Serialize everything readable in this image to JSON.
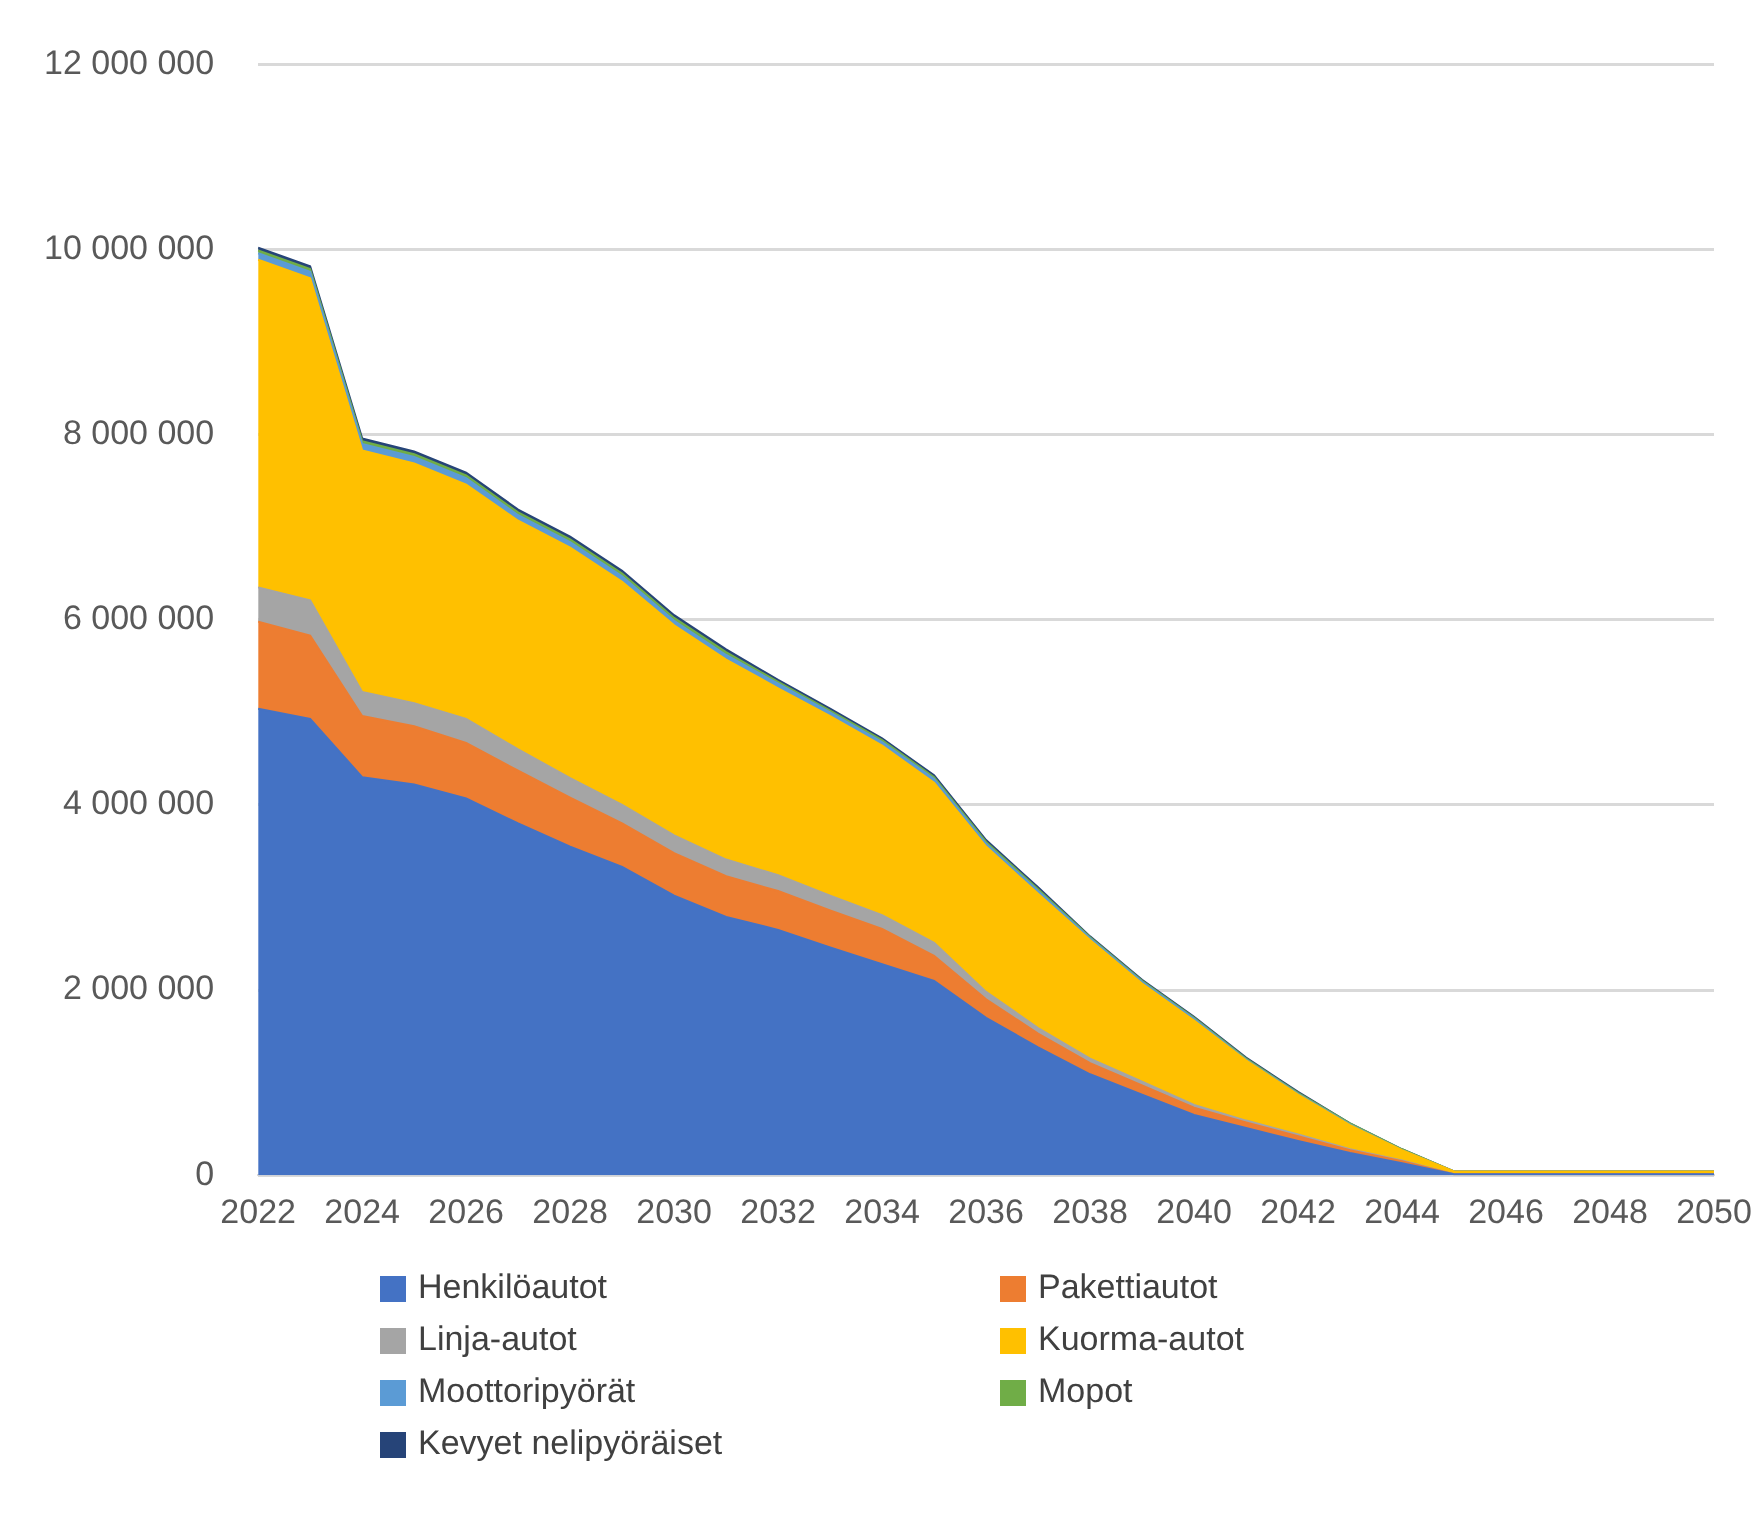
{
  "chart_data": {
    "type": "area",
    "stacked": true,
    "categories": [
      "2022",
      null,
      "2024",
      null,
      "2026",
      null,
      "2028",
      null,
      "2030",
      null,
      "2032",
      null,
      "2034",
      null,
      "2036",
      null,
      "2038",
      null,
      "2040",
      null,
      "2042",
      null,
      "2044",
      null,
      "2046",
      null,
      "2048",
      null,
      "2050"
    ],
    "ylim": [
      0,
      12000000
    ],
    "yticks": [
      {
        "value": 0,
        "label": "0"
      },
      {
        "value": 2000000,
        "label": "2 000 000"
      },
      {
        "value": 4000000,
        "label": "4 000 000"
      },
      {
        "value": 6000000,
        "label": "6 000 000"
      },
      {
        "value": 8000000,
        "label": "8 000 000"
      },
      {
        "value": 10000000,
        "label": "10 000 000"
      },
      {
        "value": 12000000,
        "label": "12 000 000"
      }
    ],
    "grid": "y",
    "legend": "bottom",
    "series": [
      {
        "name": "Henkilöautot",
        "color": "#4472c4",
        "values": [
          5040000,
          4930000,
          4300000,
          4220000,
          4070000,
          3800000,
          3550000,
          3330000,
          3020000,
          2790000,
          2650000,
          2460000,
          2280000,
          2100000,
          1700000,
          1380000,
          1090000,
          870000,
          650000,
          510000,
          370000,
          240000,
          130000,
          10000,
          10000,
          10000,
          10000,
          10000,
          10000
        ]
      },
      {
        "name": "Pakettiautot",
        "color": "#ed7d31",
        "values": [
          940000,
          900000,
          660000,
          630000,
          600000,
          570000,
          530000,
          470000,
          460000,
          440000,
          420000,
          400000,
          380000,
          270000,
          200000,
          150000,
          120000,
          100000,
          80000,
          60000,
          50000,
          30000,
          20000,
          0,
          0,
          0,
          0,
          0,
          0
        ]
      },
      {
        "name": "Linja-autot",
        "color": "#a5a5a5",
        "values": [
          370000,
          380000,
          260000,
          250000,
          260000,
          230000,
          210000,
          200000,
          190000,
          180000,
          170000,
          160000,
          150000,
          140000,
          80000,
          60000,
          50000,
          40000,
          30000,
          20000,
          20000,
          10000,
          10000,
          0,
          0,
          0,
          0,
          0,
          0
        ]
      },
      {
        "name": "Kuorma-autot",
        "color": "#ffc000",
        "values": [
          3540000,
          3480000,
          2610000,
          2590000,
          2530000,
          2470000,
          2490000,
          2410000,
          2270000,
          2160000,
          2020000,
          1940000,
          1830000,
          1730000,
          1570000,
          1450000,
          1280000,
          1060000,
          910000,
          650000,
          430000,
          260000,
          110000,
          30000,
          30000,
          30000,
          30000,
          30000,
          30000
        ]
      },
      {
        "name": "Moottoripyörät",
        "color": "#5b9bd5",
        "values": [
          70000,
          70000,
          70000,
          70000,
          70000,
          60000,
          60000,
          60000,
          50000,
          50000,
          50000,
          40000,
          40000,
          40000,
          30000,
          30000,
          20000,
          20000,
          20000,
          10000,
          10000,
          10000,
          0,
          0,
          0,
          0,
          0,
          0,
          0
        ]
      },
      {
        "name": "Mopot",
        "color": "#70ad47",
        "values": [
          30000,
          30000,
          30000,
          30000,
          30000,
          30000,
          30000,
          30000,
          30000,
          30000,
          20000,
          20000,
          20000,
          20000,
          20000,
          20000,
          10000,
          10000,
          10000,
          10000,
          10000,
          10000,
          10000,
          0,
          0,
          0,
          0,
          0,
          0
        ]
      },
      {
        "name": "Kevyet nelipyöräiset",
        "color": "#264478",
        "values": [
          30000,
          30000,
          30000,
          30000,
          30000,
          30000,
          30000,
          30000,
          30000,
          30000,
          20000,
          20000,
          20000,
          20000,
          20000,
          20000,
          10000,
          10000,
          10000,
          10000,
          10000,
          0,
          0,
          0,
          0,
          0,
          0,
          0,
          0
        ]
      }
    ]
  }
}
